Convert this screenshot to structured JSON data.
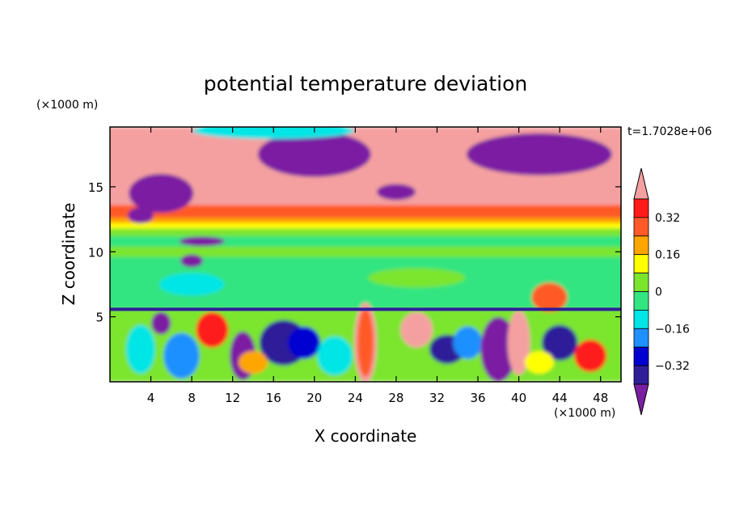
{
  "chart_data": {
    "type": "heatmap",
    "title": "potential temperature deviation",
    "xlabel": "X coordinate",
    "ylabel": "Z coordinate",
    "x_unit": "(×1000 m)",
    "z_unit": "(×1000 m)",
    "time_label": "t=1.7028e+06",
    "xlim": [
      0,
      50
    ],
    "zlim": [
      0,
      19.6
    ],
    "x_ticks": [
      4,
      8,
      12,
      16,
      20,
      24,
      28,
      32,
      36,
      40,
      44,
      48
    ],
    "z_ticks": [
      5,
      10,
      15
    ],
    "colorbar": {
      "levels": [
        -0.4,
        -0.32,
        -0.24,
        -0.16,
        -0.08,
        0,
        0.08,
        0.16,
        0.24,
        0.32,
        0.4
      ],
      "labels": [
        "0.32",
        "0.16",
        "0",
        "−0.16",
        "−0.32"
      ],
      "label_values": [
        0.32,
        0.16,
        0,
        -0.16,
        -0.32
      ],
      "colors": [
        "#7b1fa2",
        "#2e1f99",
        "#0000d0",
        "#1e90ff",
        "#00e5e5",
        "#33e580",
        "#7be52d",
        "#ffff00",
        "#ffa500",
        "#ff5a28",
        "#ff1a1a",
        "#f5a0a0"
      ]
    },
    "grid": false
  }
}
